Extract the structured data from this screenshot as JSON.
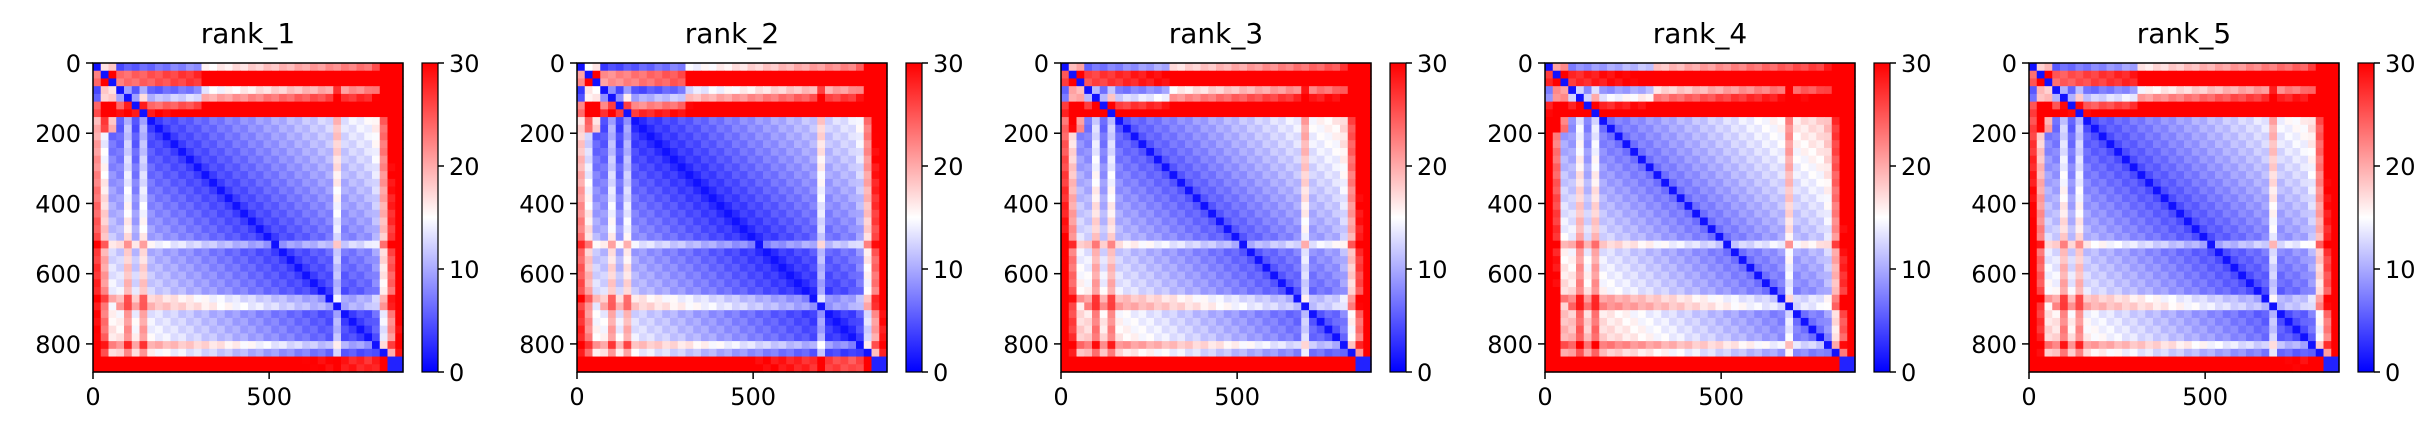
{
  "chart_data": [
    {
      "type": "heatmap",
      "title": "rank_1",
      "xticks": [
        0,
        500
      ],
      "yticks": [
        0,
        200,
        400,
        600,
        800
      ],
      "xlim": [
        0,
        880
      ],
      "ylim": [
        880,
        0
      ],
      "colorbar": {
        "ticks": [
          0,
          10,
          20,
          30
        ],
        "range": [
          0,
          30
        ],
        "colormap": "bwr"
      },
      "profile": {
        "shift": 0,
        "bottom_red": 0.9,
        "left_red": 0.5,
        "top_band": 0.95
      }
    },
    {
      "type": "heatmap",
      "title": "rank_2",
      "xticks": [
        0,
        500
      ],
      "yticks": [
        0,
        200,
        400,
        600,
        800
      ],
      "xlim": [
        0,
        880
      ],
      "ylim": [
        880,
        0
      ],
      "colorbar": {
        "ticks": [
          0,
          10,
          20,
          30
        ],
        "range": [
          0,
          30
        ],
        "colormap": "bwr"
      },
      "profile": {
        "shift": -1,
        "bottom_red": 0.85,
        "left_red": 0.45,
        "top_band": 0.9
      }
    },
    {
      "type": "heatmap",
      "title": "rank_3",
      "xticks": [
        0,
        500
      ],
      "yticks": [
        0,
        200,
        400,
        600,
        800
      ],
      "xlim": [
        0,
        880
      ],
      "ylim": [
        880,
        0
      ],
      "colorbar": {
        "ticks": [
          0,
          10,
          20,
          30
        ],
        "range": [
          0,
          30
        ],
        "colormap": "bwr"
      },
      "profile": {
        "shift": 1.5,
        "bottom_red": 1.0,
        "left_red": 0.6,
        "top_band": 1.0
      }
    },
    {
      "type": "heatmap",
      "title": "rank_4",
      "xticks": [
        0,
        500
      ],
      "yticks": [
        0,
        200,
        400,
        600,
        800
      ],
      "xlim": [
        0,
        880
      ],
      "ylim": [
        880,
        0
      ],
      "colorbar": {
        "ticks": [
          0,
          10,
          20,
          30
        ],
        "range": [
          0,
          30
        ],
        "colormap": "bwr"
      },
      "profile": {
        "shift": 3,
        "bottom_red": 1.0,
        "left_red": 0.9,
        "top_band": 1.0
      }
    },
    {
      "type": "heatmap",
      "title": "rank_5",
      "xticks": [
        0,
        500
      ],
      "yticks": [
        0,
        200,
        400,
        600,
        800
      ],
      "xlim": [
        0,
        880
      ],
      "ylim": [
        880,
        0
      ],
      "colorbar": {
        "ticks": [
          0,
          10,
          20,
          30
        ],
        "range": [
          0,
          30
        ],
        "colormap": "bwr"
      },
      "profile": {
        "shift": 1,
        "bottom_red": 0.95,
        "left_red": 0.7,
        "top_band": 0.95
      }
    }
  ],
  "colors": {
    "low": "#0000ff",
    "mid": "#ffffff",
    "high": "#ff0000"
  }
}
